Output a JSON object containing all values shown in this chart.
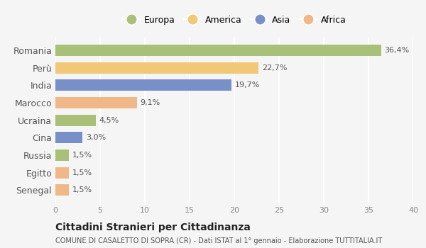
{
  "countries": [
    "Romania",
    "Perù",
    "India",
    "Marocco",
    "Ucraina",
    "Cina",
    "Russia",
    "Egitto",
    "Senegal"
  ],
  "values": [
    36.4,
    22.7,
    19.7,
    9.1,
    4.5,
    3.0,
    1.5,
    1.5,
    1.5
  ],
  "labels": [
    "36,4%",
    "22,7%",
    "19,7%",
    "9,1%",
    "4,5%",
    "3,0%",
    "1,5%",
    "1,5%",
    "1,5%"
  ],
  "colors": [
    "#a8c078",
    "#f0c878",
    "#7890c8",
    "#f0b888",
    "#a8c078",
    "#7890c8",
    "#a8c078",
    "#f0b888",
    "#f0b888"
  ],
  "legend_labels": [
    "Europa",
    "America",
    "Asia",
    "Africa"
  ],
  "legend_colors": [
    "#a8c078",
    "#f0c878",
    "#7890c8",
    "#f0b888"
  ],
  "xlim": [
    0,
    40
  ],
  "xticks": [
    0,
    5,
    10,
    15,
    20,
    25,
    30,
    35,
    40
  ],
  "title": "Cittadini Stranieri per Cittadinanza",
  "subtitle": "COMUNE DI CASALETTO DI SOPRA (CR) - Dati ISTAT al 1° gennaio - Elaborazione TUTTITALIA.IT",
  "bg_color": "#f5f5f5",
  "grid_color": "#ffffff",
  "bar_height": 0.65
}
